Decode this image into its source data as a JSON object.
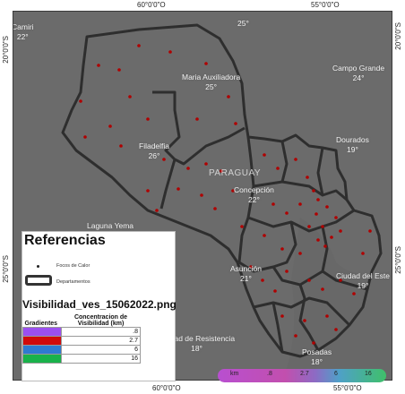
{
  "graticule": {
    "top_60": "60°0'0\"O",
    "top_55": "55°0'0\"O",
    "bottom_60": "60°0'0\"O",
    "bottom_55": "55°0'0\"O",
    "left_20": "20°0'0\"S",
    "left_25": "25°0'0\"S",
    "right_20": "20°0'0\"S",
    "right_25": "25°0'0\"S"
  },
  "country_label": "PARAGUAY",
  "cities": [
    {
      "name": "Camiri",
      "temp": "22°"
    },
    {
      "name": "",
      "temp": "25°"
    },
    {
      "name": "Campo Grande",
      "temp": "24°"
    },
    {
      "name": "Maria Auxiliadora",
      "temp": "25°"
    },
    {
      "name": "Filadelfia",
      "temp": "26°"
    },
    {
      "name": "Dourados",
      "temp": "19°"
    },
    {
      "name": "Concepción",
      "temp": "22°"
    },
    {
      "name": "Laguna Yema",
      "temp": ""
    },
    {
      "name": "Asunción",
      "temp": "21°"
    },
    {
      "name": "Ciudad del Este",
      "temp": "19°"
    },
    {
      "name": "Ciudad de Resistencia",
      "temp": "18°"
    },
    {
      "name": "Posadas",
      "temp": "18°"
    }
  ],
  "legend": {
    "title": "Referencias",
    "hotspot_label": "Focos de Calor",
    "dept_label": "Departamentos",
    "file_title": "Visibilidad_ves_15062022.png",
    "col_gradients": "Gradientes",
    "col_concentration": "Concentracion de Visibilidad (km)",
    "rows": [
      {
        "color": "#9b4ff0",
        "value": ".8"
      },
      {
        "color": "#d10a0a",
        "value": "2.7"
      },
      {
        "color": "#2f7ad0",
        "value": "6"
      },
      {
        "color": "#19b24a",
        "value": "16"
      }
    ]
  },
  "scale_bar": {
    "unit": "km",
    "ticks": [
      ".8",
      "2.7",
      "6",
      "16"
    ]
  },
  "colors": {
    "map_bg": "#6b6b6b",
    "border": "#2e2e2e",
    "hotspot": "#b00000"
  }
}
